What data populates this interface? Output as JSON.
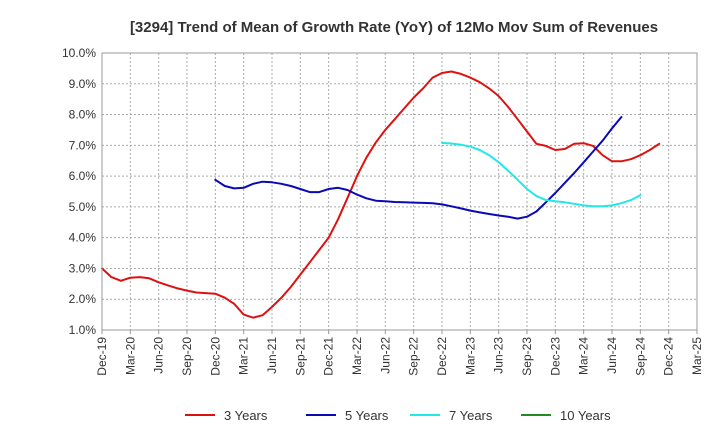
{
  "chart_data": {
    "type": "line",
    "title": "[3294]  Trend of Mean of Growth Rate (YoY) of 12Mo Mov Sum of Revenues",
    "xlabel": "",
    "ylabel": "",
    "ylim": [
      1.0,
      10.0
    ],
    "yticks": [
      "1.0%",
      "2.0%",
      "3.0%",
      "4.0%",
      "5.0%",
      "6.0%",
      "7.0%",
      "8.0%",
      "9.0%",
      "10.0%"
    ],
    "xticks": [
      "Dec-19",
      "Mar-20",
      "Jun-20",
      "Sep-20",
      "Dec-20",
      "Mar-21",
      "Jun-21",
      "Sep-21",
      "Dec-21",
      "Mar-22",
      "Jun-22",
      "Sep-22",
      "Dec-22",
      "Mar-23",
      "Jun-23",
      "Sep-23",
      "Dec-23",
      "Mar-24",
      "Jun-24",
      "Sep-24",
      "Dec-24",
      "Mar-25"
    ],
    "grid": true,
    "legend_position": "bottom",
    "series": [
      {
        "name": "3 Years",
        "color": "#dd1111",
        "start_index": 0,
        "values": [
          3.0,
          2.72,
          2.6,
          2.7,
          2.72,
          2.68,
          2.55,
          2.45,
          2.35,
          2.28,
          2.22,
          2.2,
          2.18,
          2.05,
          1.85,
          1.5,
          1.4,
          1.48,
          1.75,
          2.05,
          2.4,
          2.8,
          3.2,
          3.6,
          4.0,
          4.6,
          5.3,
          6.0,
          6.6,
          7.1,
          7.5,
          7.85,
          8.2,
          8.55,
          8.85,
          9.2,
          9.35,
          9.4,
          9.32,
          9.2,
          9.05,
          8.85,
          8.6,
          8.25,
          7.85,
          7.45,
          7.05,
          6.98,
          6.85,
          6.88,
          7.05,
          7.07,
          6.98,
          6.68,
          6.48,
          6.48,
          6.55,
          6.68,
          6.85,
          7.05
        ]
      },
      {
        "name": "5 Years",
        "color": "#0a0ab4",
        "start_index": 12,
        "values": [
          5.88,
          5.68,
          5.6,
          5.62,
          5.75,
          5.82,
          5.8,
          5.75,
          5.68,
          5.58,
          5.48,
          5.48,
          5.58,
          5.62,
          5.55,
          5.4,
          5.28,
          5.2,
          5.18,
          5.16,
          5.15,
          5.14,
          5.13,
          5.12,
          5.08,
          5.02,
          4.95,
          4.88,
          4.82,
          4.77,
          4.72,
          4.68,
          4.62,
          4.68,
          4.85,
          5.15,
          5.45,
          5.78,
          6.1,
          6.45,
          6.8,
          7.15,
          7.55,
          7.92
        ]
      },
      {
        "name": "7 Years",
        "color": "#22e8e8",
        "start_index": 36,
        "values": [
          7.08,
          7.06,
          7.02,
          6.96,
          6.85,
          6.68,
          6.45,
          6.18,
          5.88,
          5.58,
          5.35,
          5.22,
          5.18,
          5.15,
          5.1,
          5.05,
          5.02,
          5.02,
          5.05,
          5.12,
          5.22,
          5.38
        ]
      },
      {
        "name": "10 Years",
        "color": "#228b22",
        "start_index": 0,
        "values": []
      }
    ]
  }
}
